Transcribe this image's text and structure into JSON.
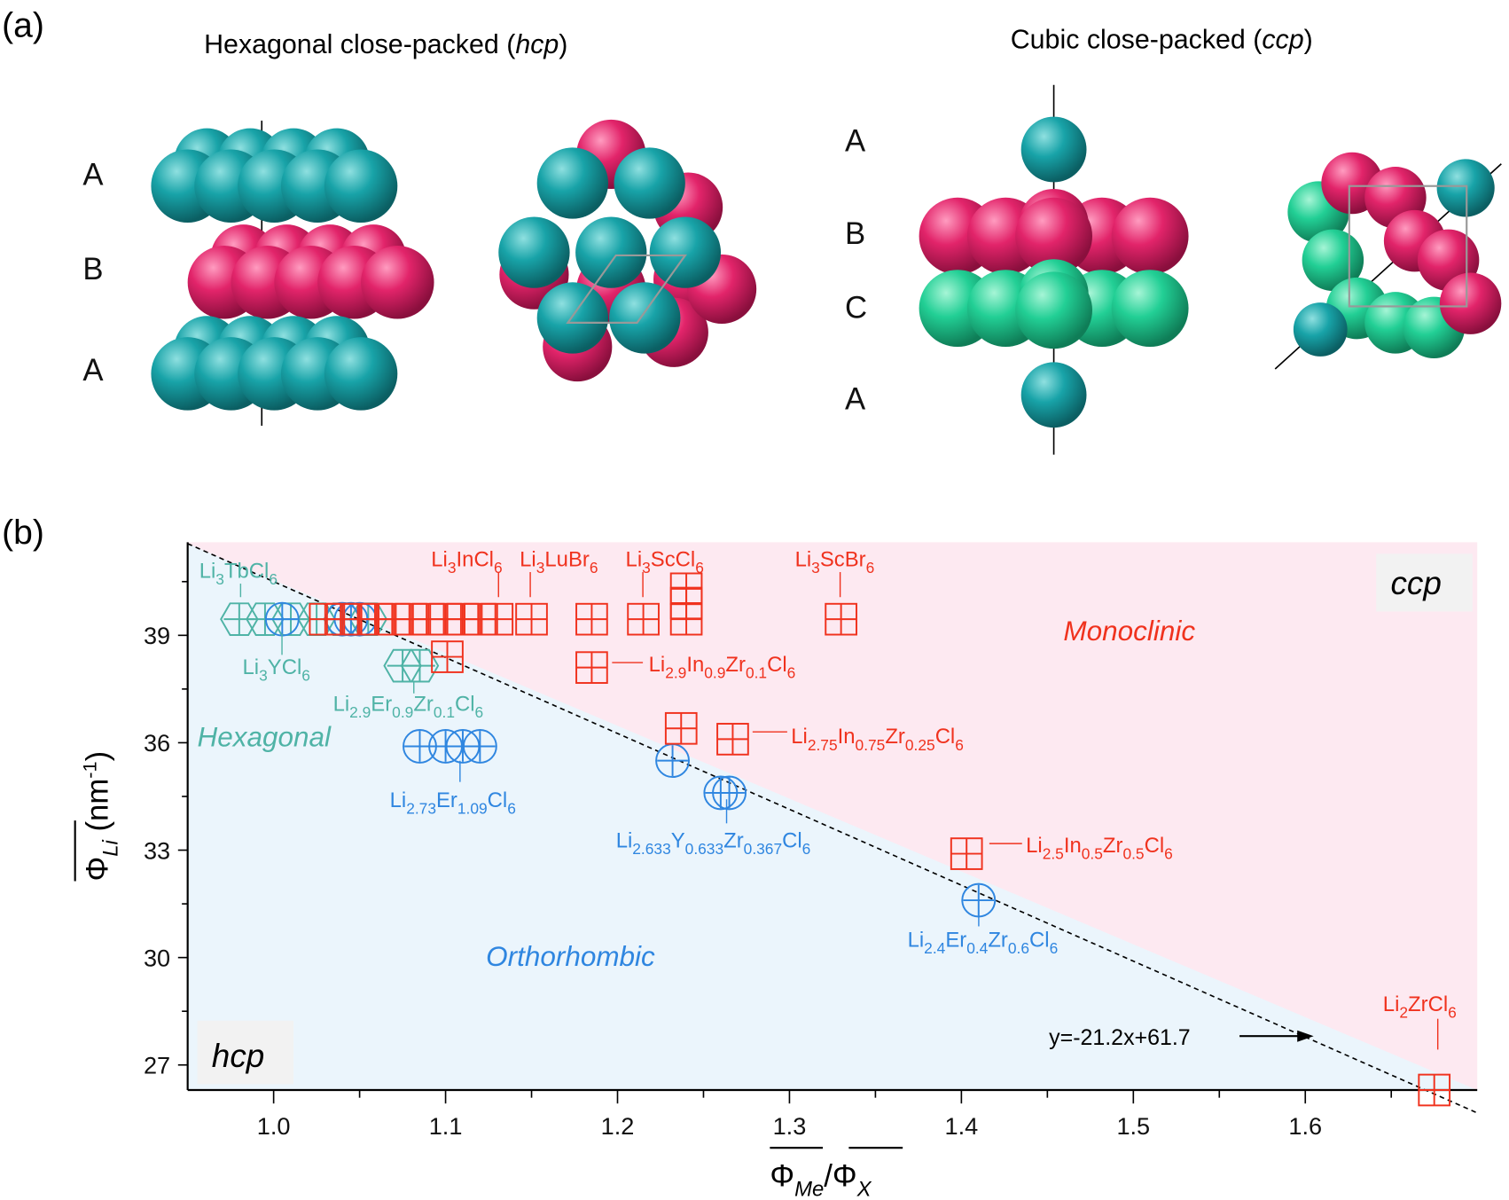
{
  "panel_a": {
    "label": "(a)",
    "hcp_title": "Hexagonal close-packed (",
    "hcp_abbr": "hcp",
    "ccp_title": "Cubic close-packed (",
    "ccp_abbr": "ccp",
    "close_paren": ")",
    "hcp_layers": [
      "A",
      "B",
      "A"
    ],
    "ccp_layers": [
      "A",
      "B",
      "C",
      "A"
    ],
    "colors": {
      "teal": "#18a3a8",
      "magenta": "#e2246a",
      "green": "#22cf95"
    }
  },
  "chart_data": {
    "type": "scatter",
    "panel_label": "(b)",
    "xlabel": {
      "main": "Φ",
      "sub1": "Me",
      "slash": "/",
      "main2": "Φ",
      "sub2": "X"
    },
    "ylabel": {
      "main": "Φ",
      "sub": "Li",
      "unit": " (nm",
      "sup": "-1",
      "close": ")"
    },
    "xlim": [
      0.95,
      1.7
    ],
    "ylim": [
      26.3,
      41.6
    ],
    "xticks": [
      "1.0",
      "1.1",
      "1.2",
      "1.3",
      "1.4",
      "1.5",
      "1.6"
    ],
    "yticks": [
      "27",
      "30",
      "33",
      "36",
      "39"
    ],
    "regions": {
      "upper": "ccp",
      "lower": "hcp",
      "monoclinic": "Monoclinic",
      "hexagonal": "Hexagonal",
      "orthorhombic": "Orthorhombic"
    },
    "fit_line": {
      "slope": -21.2,
      "intercept": 61.7,
      "label": "y=-21.2x+61.7"
    },
    "colors": {
      "hexagonal": "#4fb3a6",
      "orthorhombic": "#2f86e0",
      "monoclinic": "#f0321e",
      "upper_bg": "#fde9f1",
      "lower_bg": "#ebf5fc"
    },
    "series": [
      {
        "name": "Hexagonal",
        "marker": "hexagon",
        "points": [
          [
            0.98,
            39.45
          ],
          [
            0.995,
            39.45
          ],
          [
            1.01,
            39.45
          ],
          [
            1.025,
            39.45
          ],
          [
            1.04,
            39.45
          ],
          [
            1.055,
            39.45
          ],
          [
            1.075,
            38.15
          ],
          [
            1.085,
            38.15
          ]
        ]
      },
      {
        "name": "Orthorhombic",
        "marker": "circle",
        "points": [
          [
            1.005,
            39.45
          ],
          [
            1.04,
            39.45
          ],
          [
            1.045,
            39.45
          ],
          [
            1.05,
            39.45
          ],
          [
            1.085,
            35.9
          ],
          [
            1.1,
            35.9
          ],
          [
            1.11,
            35.9
          ],
          [
            1.12,
            35.9
          ],
          [
            1.232,
            35.5
          ],
          [
            1.26,
            34.6
          ],
          [
            1.265,
            34.6
          ],
          [
            1.41,
            31.6
          ]
        ]
      },
      {
        "name": "Monoclinic",
        "marker": "square",
        "points": [
          [
            1.03,
            39.45
          ],
          [
            1.04,
            39.45
          ],
          [
            1.05,
            39.45
          ],
          [
            1.06,
            39.45
          ],
          [
            1.07,
            39.45
          ],
          [
            1.08,
            39.45
          ],
          [
            1.09,
            39.45
          ],
          [
            1.1,
            39.45
          ],
          [
            1.11,
            39.45
          ],
          [
            1.12,
            39.45
          ],
          [
            1.13,
            39.45
          ],
          [
            1.15,
            39.45
          ],
          [
            1.185,
            39.45
          ],
          [
            1.215,
            39.45
          ],
          [
            1.24,
            39.45
          ],
          [
            1.24,
            39.9
          ],
          [
            1.24,
            40.3
          ],
          [
            1.33,
            39.45
          ],
          [
            1.101,
            38.4
          ],
          [
            1.185,
            38.1
          ],
          [
            1.237,
            36.4
          ],
          [
            1.267,
            36.1
          ],
          [
            1.403,
            32.9
          ],
          [
            1.675,
            26.3
          ]
        ]
      }
    ],
    "annotations": [
      {
        "text": "Li3TbCl6",
        "series": "Hexagonal"
      },
      {
        "text": "Li3YCl6",
        "series": "Hexagonal"
      },
      {
        "text": "Li2.9Er0.9Zr0.1Cl6",
        "series": "Hexagonal"
      },
      {
        "text": "Li2.73Er1.09Cl6",
        "series": "Orthorhombic"
      },
      {
        "text": "Li2.633Y0.633Zr0.367Cl6",
        "series": "Orthorhombic"
      },
      {
        "text": "Li2.4Er0.4Zr0.6Cl6",
        "series": "Orthorhombic"
      },
      {
        "text": "Li3InCl6",
        "series": "Monoclinic"
      },
      {
        "text": "Li3LuBr6",
        "series": "Monoclinic"
      },
      {
        "text": "Li3ScCl6",
        "series": "Monoclinic"
      },
      {
        "text": "Li3ScBr6",
        "series": "Monoclinic"
      },
      {
        "text": "Li2.9In0.9Zr0.1Cl6",
        "series": "Monoclinic"
      },
      {
        "text": "Li2.75In0.75Zr0.25Cl6",
        "series": "Monoclinic"
      },
      {
        "text": "Li2.5In0.5Zr0.5Cl6",
        "series": "Monoclinic"
      },
      {
        "text": "Li2ZrCl6",
        "series": "Monoclinic"
      }
    ]
  }
}
